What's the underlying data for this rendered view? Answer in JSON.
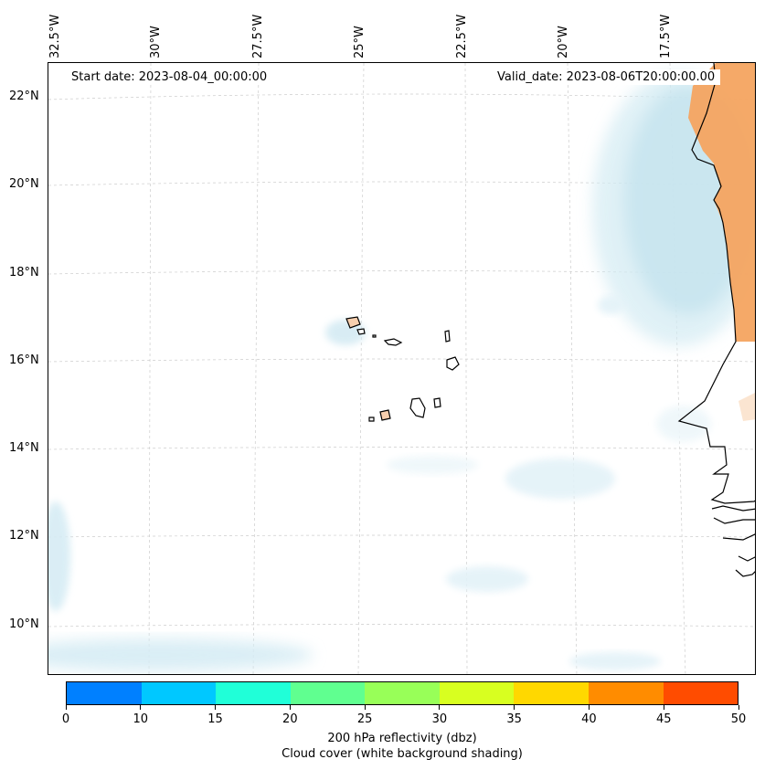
{
  "map": {
    "start_date": "Start date: 2023-08-04_00:00:00",
    "valid_date": "Valid_date: 2023-08-06T20:00:00.00",
    "lon_labels": [
      "32.5°W",
      "30°W",
      "27.5°W",
      "25°W",
      "22.5°W",
      "20°W",
      "17.5°W"
    ],
    "lat_labels": [
      "22°N",
      "20°N",
      "18°N",
      "16°N",
      "14°N",
      "12°N",
      "10°N"
    ],
    "colors": {
      "cloud": "#a9d6e5",
      "cloud_light": "#e3f2f8",
      "reflectivity_high": "#f4a460",
      "coastline": "#000000",
      "grid": "#cccccc"
    }
  },
  "colorbar": {
    "ticks": [
      "0",
      "10",
      "15",
      "20",
      "25",
      "30",
      "35",
      "40",
      "45",
      "50"
    ],
    "colors": [
      "#0080ff",
      "#00c8ff",
      "#20ffd8",
      "#60ff90",
      "#98ff58",
      "#d8ff20",
      "#ffd800",
      "#ff8c00",
      "#ff4c00"
    ],
    "label_line1": "200 hPa reflectivity (dbz)",
    "label_line2": "Cloud cover (white background shading)"
  }
}
